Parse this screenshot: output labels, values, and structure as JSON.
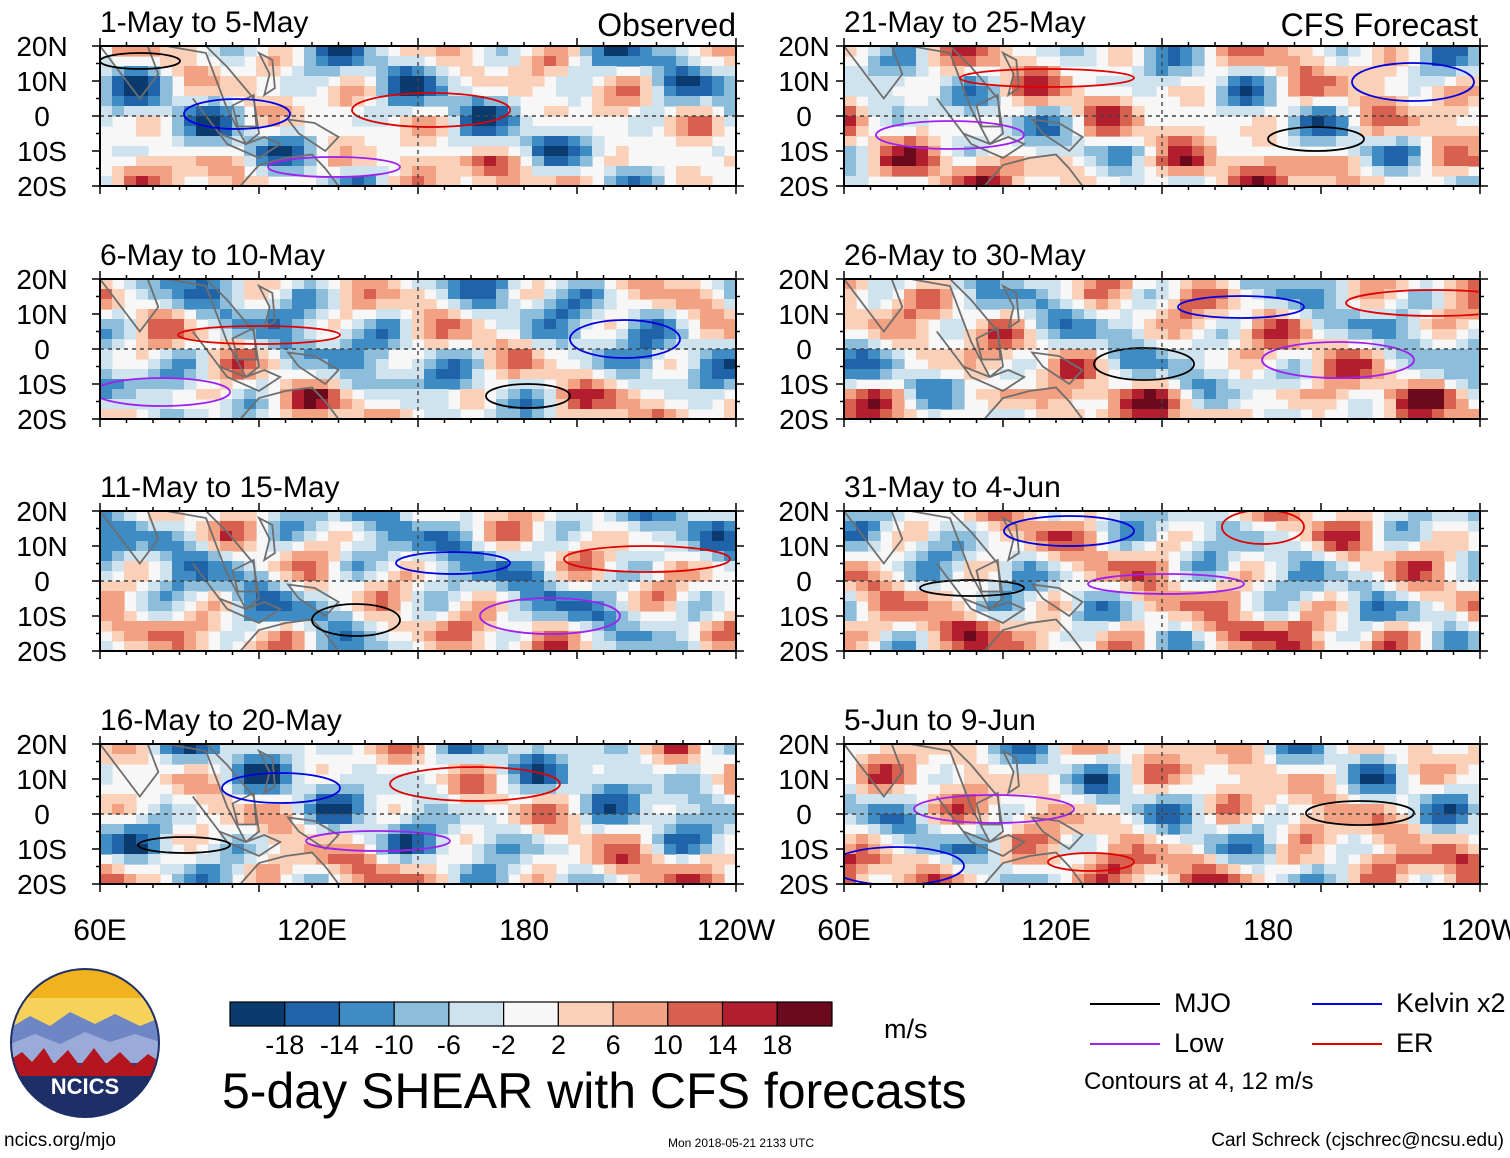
{
  "figure": {
    "title": "5-day SHEAR with CFS forecasts",
    "website": "ncics.org/mjo",
    "timestamp": "Mon 2018-05-21 2133 UTC",
    "author": "Carl Schreck (cjschrec@ncsu.edu)",
    "logo_text": "NCICS",
    "column_labels": {
      "left": "Observed",
      "right": "CFS Forecast"
    }
  },
  "legend": {
    "units": "m/s",
    "contour_note": "Contours at 4, 12 m/s",
    "lines": [
      {
        "label": "MJO",
        "color": "#000000"
      },
      {
        "label": "Kelvin x2",
        "color": "#0000e0"
      },
      {
        "label": "Low",
        "color": "#a020f0"
      },
      {
        "label": "ER",
        "color": "#e00000"
      }
    ]
  },
  "chart_data": {
    "type": "heatmap",
    "variable": "Vertical wind shear anomaly",
    "units": "m/s",
    "x_axis": {
      "ticks": [
        "60E",
        "120E",
        "180",
        "120W"
      ]
    },
    "y_axis": {
      "ticks": [
        "20N",
        "10N",
        "0",
        "10S",
        "20S"
      ]
    },
    "color_bounds": [
      -18,
      -14,
      -10,
      -6,
      -2,
      2,
      6,
      10,
      14,
      18
    ],
    "colorbar_labels": [
      "-18",
      "-14",
      "-10",
      "-6",
      "-2",
      "2",
      "6",
      "10",
      "14",
      "18"
    ],
    "colors": [
      "#0b3a6e",
      "#1f63a8",
      "#3f8cc4",
      "#8cbedc",
      "#cfe3ef",
      "#f7f7f7",
      "#fbd0b8",
      "#f2a183",
      "#d8604f",
      "#b31e2e",
      "#6b0a1d"
    ],
    "panels": [
      {
        "title": "1-May to 5-May",
        "source": "Observed",
        "column": "left"
      },
      {
        "title": "6-May to 10-May",
        "source": "Observed",
        "column": "left"
      },
      {
        "title": "11-May to 15-May",
        "source": "Observed",
        "column": "left"
      },
      {
        "title": "16-May to 20-May",
        "source": "Observed",
        "column": "left"
      },
      {
        "title": "21-May to 25-May",
        "source": "CFS Forecast",
        "column": "right"
      },
      {
        "title": "26-May to 30-May",
        "source": "CFS Forecast",
        "column": "right"
      },
      {
        "title": "31-May to 4-Jun",
        "source": "CFS Forecast",
        "column": "right"
      },
      {
        "title": "5-Jun to 9-Jun",
        "source": "CFS Forecast",
        "column": "right"
      }
    ]
  }
}
